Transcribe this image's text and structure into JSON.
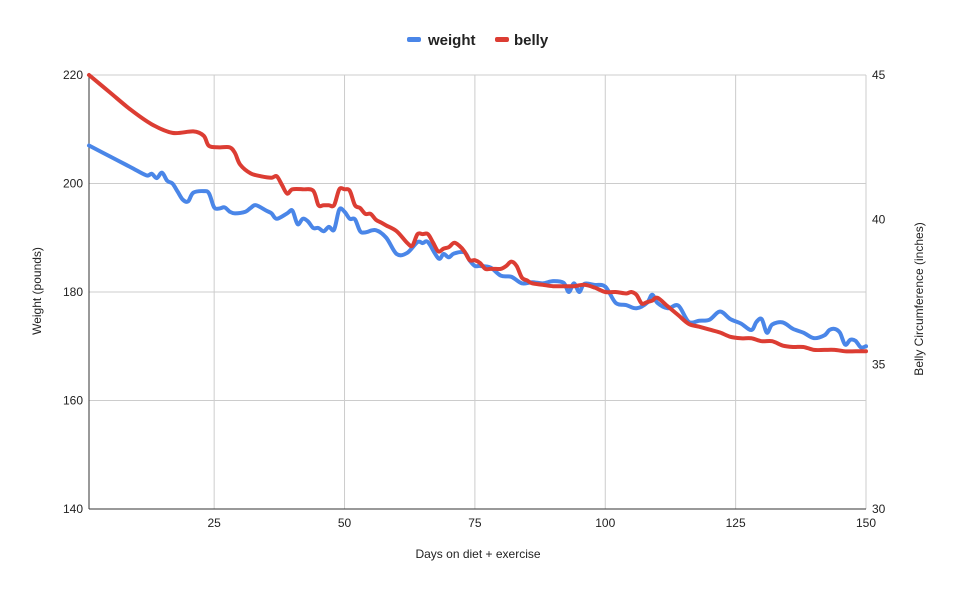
{
  "chart_data": {
    "type": "line",
    "xlabel": "Days on diet + exercise",
    "ylabel": "Weight (pounds)",
    "y2label": "Belly Circumference (inches)",
    "xlim": [
      1,
      150
    ],
    "ylim": [
      140,
      220
    ],
    "y2lim": [
      30,
      45
    ],
    "x_ticks": [
      25,
      50,
      75,
      100,
      125,
      150
    ],
    "y_ticks": [
      140,
      160,
      180,
      200,
      220
    ],
    "y2_ticks": [
      30,
      35,
      40,
      45
    ],
    "grid": true,
    "legend": "top-center",
    "series": [
      {
        "name": "weight",
        "axis": "left",
        "color": "#4a86e8",
        "x": [
          1,
          5,
          9,
          12,
          13,
          14,
          15,
          16,
          17,
          18,
          19,
          20,
          21,
          23,
          24,
          25,
          26,
          27,
          28,
          29,
          31,
          32,
          33,
          35,
          36,
          37,
          39,
          40,
          41,
          42,
          43,
          44,
          45,
          46,
          47,
          48,
          49,
          50,
          51,
          52,
          53,
          54,
          56,
          58,
          60,
          62,
          64,
          65,
          66,
          68,
          69,
          70,
          71,
          73,
          74,
          75,
          76,
          78,
          80,
          82,
          84,
          86,
          88,
          90,
          92,
          93,
          94,
          95,
          96,
          98,
          100,
          102,
          104,
          106,
          108,
          109,
          110,
          112,
          114,
          116,
          118,
          120,
          122,
          124,
          126,
          128,
          129,
          130,
          131,
          132,
          134,
          136,
          138,
          140,
          142,
          143,
          144,
          145,
          146,
          147,
          148,
          149,
          150
        ],
        "values": [
          207,
          205,
          203,
          201.5,
          201.8,
          201,
          202,
          200.5,
          200,
          198.5,
          197,
          196.7,
          198.3,
          198.6,
          198.2,
          195.6,
          195.4,
          195.6,
          194.8,
          194.5,
          194.8,
          195.5,
          196,
          195,
          194.5,
          193.5,
          194.5,
          195,
          192.5,
          193.5,
          193,
          191.8,
          191.8,
          191.2,
          192,
          191.5,
          195.2,
          194.8,
          193.5,
          193.4,
          191.2,
          191,
          191.4,
          190,
          187,
          187.2,
          189.2,
          189,
          189.2,
          186.2,
          187,
          186.4,
          187.1,
          187.3,
          185.8,
          184.8,
          184.8,
          184.5,
          183,
          182.8,
          181.6,
          181.8,
          181.6,
          182,
          181.7,
          180,
          181.6,
          180,
          181.5,
          181.3,
          181,
          178,
          177.6,
          177,
          178,
          179.5,
          178,
          177,
          177.5,
          174.5,
          174.7,
          174.9,
          176.4,
          175,
          174.2,
          173,
          174.5,
          175,
          172.5,
          174,
          174.4,
          173.2,
          172.5,
          171.5,
          172,
          173,
          173.2,
          172.5,
          170.3,
          171.2,
          171,
          169.8,
          170
        ]
      },
      {
        "name": "belly",
        "axis": "right",
        "color": "#dc3d33",
        "x": [
          1,
          5,
          9,
          13,
          17,
          21,
          23,
          24,
          26,
          28,
          29,
          30,
          32,
          34,
          36,
          37,
          38,
          39,
          40,
          42,
          44,
          45,
          46,
          47,
          48,
          49,
          50,
          51,
          52,
          53,
          54,
          55,
          56,
          57,
          58,
          60,
          62,
          63,
          64,
          65,
          66,
          67,
          68,
          69,
          70,
          71,
          72,
          73,
          74,
          75,
          76,
          77,
          78,
          79,
          80,
          81,
          82,
          83,
          84,
          85,
          86,
          88,
          90,
          92,
          94,
          96,
          98,
          100,
          102,
          104,
          105,
          106,
          107,
          108,
          109,
          110,
          112,
          114,
          116,
          118,
          120,
          122,
          124,
          126,
          128,
          130,
          132,
          134,
          136,
          138,
          140,
          142,
          144,
          146,
          148,
          150
        ],
        "values": [
          45,
          44.4,
          43.8,
          43.3,
          43,
          43.05,
          42.9,
          42.55,
          42.5,
          42.5,
          42.3,
          41.9,
          41.6,
          41.5,
          41.45,
          41.5,
          41.2,
          40.9,
          41.05,
          41.05,
          41,
          40.5,
          40.5,
          40.5,
          40.5,
          41.05,
          41.05,
          41,
          40.5,
          40.4,
          40.2,
          40.2,
          40,
          39.9,
          39.8,
          39.6,
          39.2,
          39.1,
          39.5,
          39.5,
          39.5,
          39.2,
          38.9,
          39,
          39.05,
          39.2,
          39.1,
          38.9,
          38.6,
          38.6,
          38.5,
          38.3,
          38.3,
          38.3,
          38.3,
          38.4,
          38.55,
          38.4,
          38,
          37.9,
          37.8,
          37.75,
          37.7,
          37.7,
          37.7,
          37.75,
          37.65,
          37.5,
          37.5,
          37.45,
          37.5,
          37.4,
          37.1,
          37.15,
          37.2,
          37.3,
          37,
          36.7,
          36.4,
          36.3,
          36.2,
          36.1,
          35.95,
          35.9,
          35.9,
          35.8,
          35.8,
          35.65,
          35.6,
          35.6,
          35.5,
          35.5,
          35.5,
          35.45,
          35.45,
          35.45
        ]
      }
    ]
  }
}
